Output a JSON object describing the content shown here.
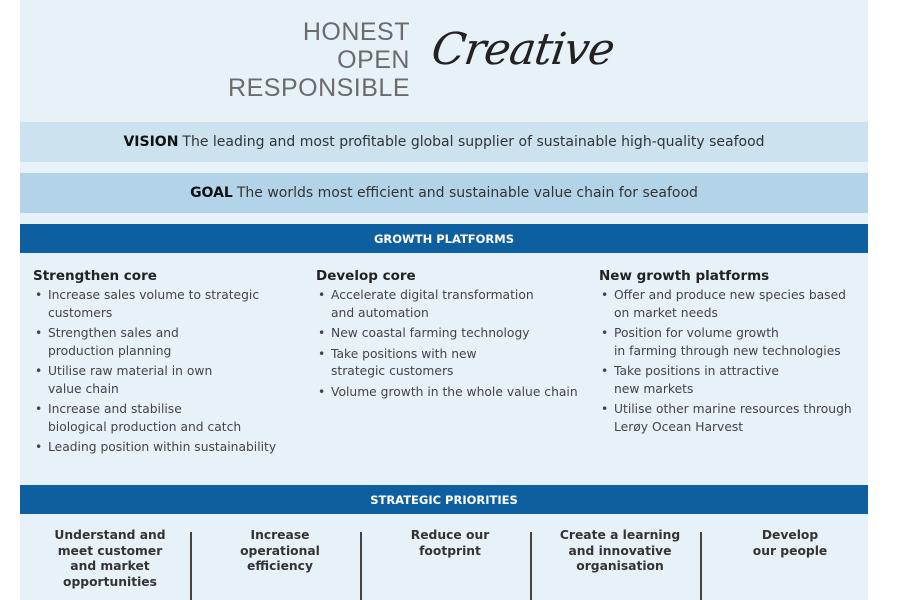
{
  "values": {
    "lines": [
      "HONEST",
      "OPEN",
      "RESPONSIBLE"
    ],
    "script_word": "Creative"
  },
  "vision": {
    "label": "VISION",
    "text": "The leading and most profitable global supplier of sustainable high-quality seafood"
  },
  "goal": {
    "label": "GOAL",
    "text": "The worlds most efficient and sustainable value chain for seafood"
  },
  "growth_platforms": {
    "header": "GROWTH PLATFORMS",
    "columns": [
      {
        "title": "Strengthen core",
        "bullets": [
          "Increase sales volume to strategic\ncustomers",
          "Strengthen sales and\nproduction planning",
          "Utilise raw material in own\nvalue chain",
          "Increase and stabilise\nbiological production and catch",
          "Leading position within sustainability"
        ]
      },
      {
        "title": "Develop core",
        "bullets": [
          "Accelerate digital transformation\nand automation",
          "New coastal farming technology",
          "Take positions with new\nstrategic customers",
          "Volume growth in the whole value chain"
        ]
      },
      {
        "title": "New growth platforms",
        "bullets": [
          "Offer and produce new species based\non market needs",
          "Position for volume growth\nin farming through new technologies",
          "Take positions in attractive\nnew markets",
          "Utilise other marine resources through\nLerøy Ocean Harvest"
        ]
      }
    ]
  },
  "strategic_priorities": {
    "header": "STRATEGIC PRIORITIES",
    "items": [
      "Understand and\nmeet customer\nand market\nopportunities",
      "Increase\noperational\nefficiency",
      "Reduce our\nfootprint",
      "Create a learning\nand innovative\norganisation",
      "Develop\nour people"
    ]
  },
  "colors": {
    "header_blue": "#0d5fa0",
    "page_bg": "#e7f1f8",
    "vision_band": "#cce3ef",
    "goal_band": "#b3d4e8"
  }
}
